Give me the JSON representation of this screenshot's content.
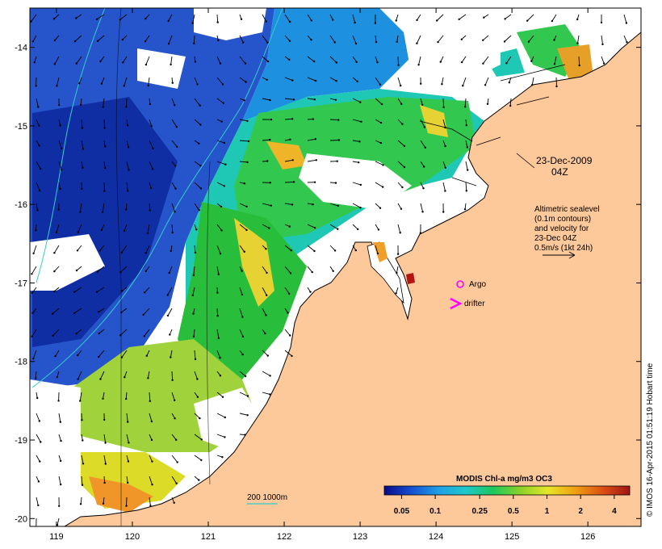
{
  "map": {
    "x_ticks": [
      "119",
      "120",
      "121",
      "122",
      "123",
      "124",
      "125",
      "126"
    ],
    "y_ticks": [
      "-14",
      "-15",
      "-16",
      "-17",
      "-18",
      "-19",
      "-20"
    ],
    "lon_range": [
      118.65,
      126.7
    ],
    "lat_range": [
      -20.1,
      -13.5
    ],
    "land_color": "#fdc89a",
    "ocean_color": "#ffffff",
    "date_label": "23-Dec-2009",
    "time_label": "04Z",
    "legend_lines": [
      "Altimetric sealevel",
      "(0.1m contours)",
      "and velocity for",
      "23-Dec 04Z",
      "0.5m/s (1kt 24h)"
    ],
    "argo_label": "Argo",
    "argo_color": "#ff00ff",
    "drifter_label": "drifter",
    "drifter_color": "#ff00ff",
    "depth_label": "200  1000m",
    "depth_color": "#33cccc",
    "colorbar": {
      "title": "MODIS Chl-a mg/m3 OC3",
      "ticks": [
        "0.05",
        "0.1",
        "0.25",
        "0.5",
        "1",
        "2",
        "4"
      ],
      "colors": [
        "#0a0a8a",
        "#1450d2",
        "#1ea0e6",
        "#1ec8c8",
        "#1ec85a",
        "#8cd228",
        "#e6e628",
        "#f0a014",
        "#dc5014",
        "#a01414"
      ]
    },
    "stamp": "© IMOS 16-Apr-2015 01:51:19 Hobart time"
  }
}
